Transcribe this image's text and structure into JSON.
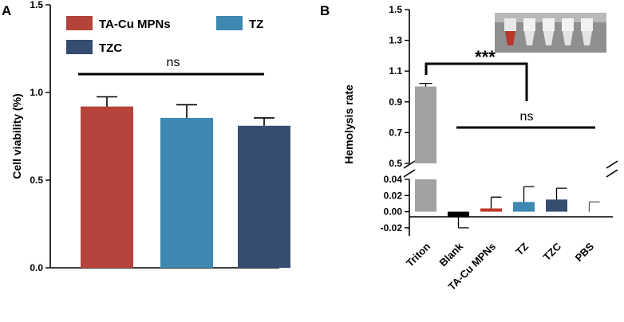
{
  "chart_data": [
    {
      "panel": "A",
      "type": "bar",
      "ylabel": "Cell viability (%)",
      "ylim": [
        0,
        1.5
      ],
      "yticks": [
        "0.0",
        "0.5",
        "1.0",
        "1.5"
      ],
      "series": [
        {
          "name": "TA-Cu MPNs",
          "value": 0.92,
          "error": 0.055,
          "color": "#b5433a"
        },
        {
          "name": "TZ",
          "value": 0.855,
          "error": 0.075,
          "color": "#3e88b1"
        },
        {
          "name": "TZC",
          "value": 0.81,
          "error": 0.045,
          "color": "#354e70"
        }
      ],
      "annotation": "ns"
    },
    {
      "panel": "B",
      "type": "bar",
      "ylabel": "Hemolysis rate",
      "broken_axis": true,
      "upper_ylim": [
        0.5,
        1.5
      ],
      "upper_yticks": [
        "0.5",
        "0.7",
        "0.9",
        "1.1",
        "1.3",
        "1.5"
      ],
      "lower_ylim": [
        -0.03,
        0.04
      ],
      "lower_yticks": [
        "-0.02",
        "0.00",
        "0.02",
        "0.04"
      ],
      "categories": [
        "Triton",
        "Blank",
        "TA-Cu MPNs",
        "TZ",
        "TZC",
        "PBS"
      ],
      "values": [
        1.0,
        -0.007,
        0.004,
        0.012,
        0.015,
        0.0
      ],
      "errors": [
        0.02,
        0.013,
        0.014,
        0.019,
        0.014,
        0.012
      ],
      "colors": [
        "#a2a2a2",
        "#000000",
        "#c0392b",
        "#3e88b1",
        "#354e70",
        "#000000"
      ],
      "annotations": {
        "triton_vs_tz": "***",
        "group": "ns"
      }
    }
  ]
}
